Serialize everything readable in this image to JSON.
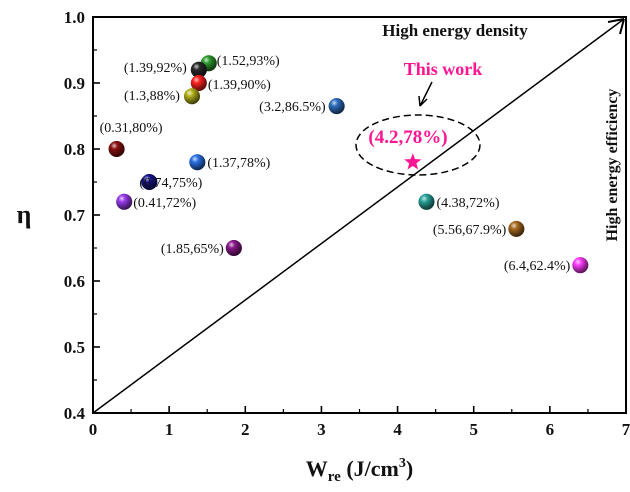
{
  "chart_data": {
    "type": "scatter",
    "xlabel": "W",
    "xlabel_sub": "re",
    "xlabel_unit": " (J/cm",
    "xlabel_sup": "3",
    "xlabel_close": ")",
    "ylabel": "η",
    "xlim": [
      0,
      7
    ],
    "ylim": [
      0.4,
      1.0
    ],
    "x_ticks": [
      "0",
      "1",
      "2",
      "3",
      "4",
      "5",
      "6",
      "7"
    ],
    "y_ticks": [
      "0.4",
      "0.5",
      "0.6",
      "0.7",
      "0.8",
      "0.9",
      "1.0"
    ],
    "grid": false,
    "points": [
      {
        "x": 1.52,
        "y": 0.93,
        "label": "(1.52,93%)",
        "color": "#2e9b2e"
      },
      {
        "x": 1.39,
        "y": 0.92,
        "label": "(1.39,92%)",
        "color": "#2a2a2a"
      },
      {
        "x": 1.39,
        "y": 0.9,
        "label": "(1.39,90%)",
        "color": "#ff2020"
      },
      {
        "x": 1.3,
        "y": 0.88,
        "label": "(1.3,88%)",
        "color": "#b5b31c"
      },
      {
        "x": 3.2,
        "y": 0.865,
        "label": "(3.2,86.5%)",
        "color": "#2f6fc0"
      },
      {
        "x": 0.31,
        "y": 0.8,
        "label": "(0.31,80%)",
        "color": "#8a1010"
      },
      {
        "x": 1.37,
        "y": 0.78,
        "label": "(1.37,78%)",
        "color": "#2b73e8"
      },
      {
        "x": 0.74,
        "y": 0.75,
        "label": "(0.74,75%)",
        "color": "#16168a"
      },
      {
        "x": 0.41,
        "y": 0.72,
        "label": "(0.41,72%)",
        "color": "#9a3cf0"
      },
      {
        "x": 1.85,
        "y": 0.65,
        "label": "(1.85,65%)",
        "color": "#8a1a8a"
      },
      {
        "x": 4.38,
        "y": 0.72,
        "label": "(4.38,72%)",
        "color": "#2aa59a"
      },
      {
        "x": 5.56,
        "y": 0.679,
        "label": "(5.56,67.9%)",
        "color": "#a86a20"
      },
      {
        "x": 6.4,
        "y": 0.624,
        "label": "(6.4,62.4%)",
        "color": "#ff3cff"
      }
    ],
    "this_work": {
      "x": 4.2,
      "y": 0.78,
      "label": "(4.2,78%)",
      "caption": "This work",
      "color": "#ff1493"
    },
    "annotations": {
      "diagonal": "High energy density",
      "vertical": "High energy efficiency"
    }
  }
}
